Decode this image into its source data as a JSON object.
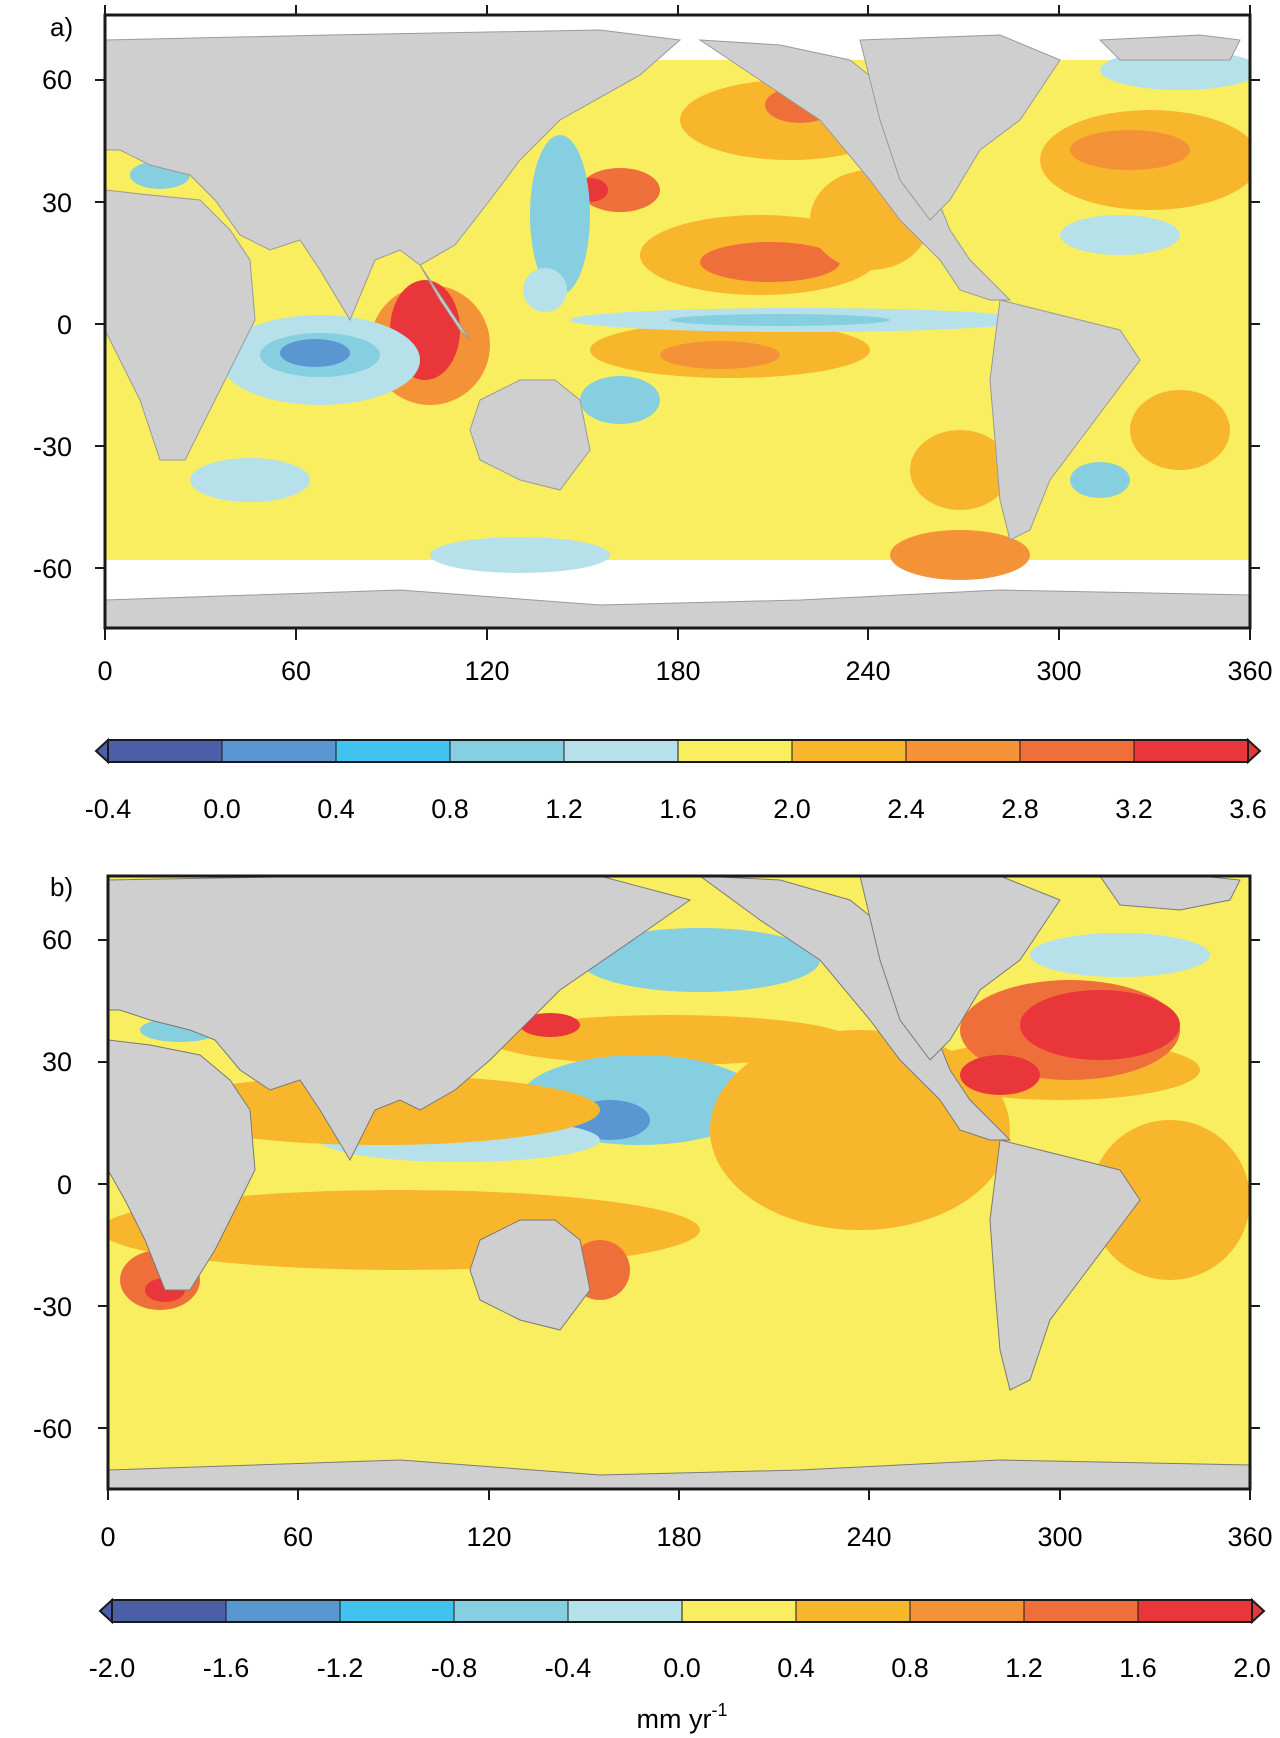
{
  "panels": [
    {
      "label": "a)",
      "lat_ticks": [
        "60",
        "30",
        "0",
        "-30",
        "-60"
      ],
      "lon_ticks": [
        "0",
        "60",
        "120",
        "180",
        "240",
        "300",
        "360"
      ],
      "colorbar": {
        "ticks": [
          "-0.4",
          "0.0",
          "0.4",
          "0.8",
          "1.2",
          "1.6",
          "2.0",
          "2.4",
          "2.8",
          "3.2",
          "3.6"
        ]
      }
    },
    {
      "label": "b)",
      "lat_ticks": [
        "60",
        "30",
        "0",
        "-30",
        "-60"
      ],
      "lon_ticks": [
        "0",
        "60",
        "120",
        "180",
        "240",
        "300",
        "360"
      ],
      "colorbar": {
        "ticks": [
          "-2.0",
          "-1.6",
          "-1.2",
          "-0.8",
          "-0.4",
          "0.0",
          "0.4",
          "0.8",
          "1.2",
          "1.6",
          "2.0"
        ],
        "units_base": "mm yr",
        "units_exponent": "-1"
      }
    }
  ],
  "palette": [
    "#4a5fa8",
    "#5a96d2",
    "#41c3f0",
    "#85cfe0",
    "#b6e1ea",
    "#f8ee5f",
    "#f8b62c",
    "#f39237",
    "#ef6f3a",
    "#e8363a"
  ],
  "land_color": "#cfcfcf",
  "no_data_color": "#ffffff"
}
